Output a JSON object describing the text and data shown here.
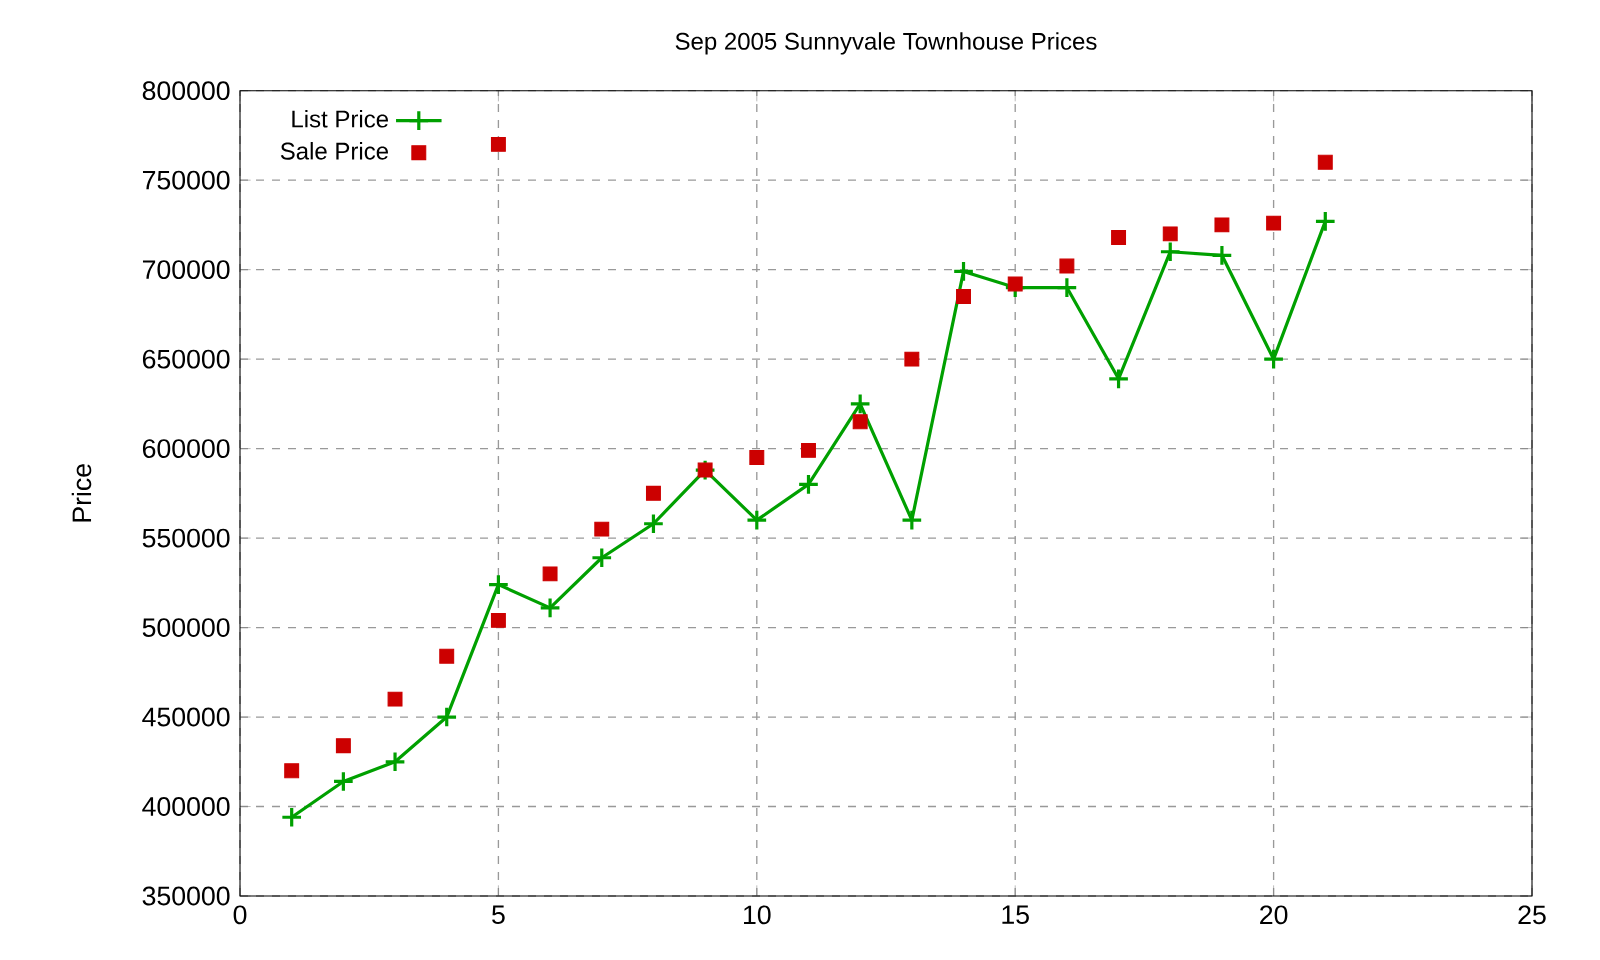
{
  "chart_data": {
    "type": "line",
    "title": "Sep 2005 Sunnyvale Townhouse Prices",
    "ylabel": "Price",
    "xlim": [
      0,
      25
    ],
    "xticks": [
      0,
      5,
      10,
      15,
      20,
      25
    ],
    "ylim": [
      350000,
      800000
    ],
    "yticks": [
      350000,
      400000,
      450000,
      500000,
      550000,
      600000,
      650000,
      700000,
      750000,
      800000
    ],
    "grid": true,
    "legend": "top left",
    "series": [
      {
        "name": "List Price",
        "color": "#00a000",
        "marker": "cross",
        "x": [
          1,
          2,
          3,
          4,
          5,
          6,
          7,
          8,
          9,
          10,
          11,
          12,
          13,
          14,
          15,
          16,
          17,
          18,
          19,
          20,
          21
        ],
        "values": [
          394000,
          414000,
          425000,
          450000,
          524000,
          511000,
          539000,
          558000,
          588000,
          560000,
          580000,
          625000,
          560000,
          699000,
          690000,
          690000,
          639000,
          710000,
          708000,
          650000,
          727000
        ]
      },
      {
        "name": "Sale Price",
        "type": "scatter",
        "color": "#cc0000",
        "marker": "square",
        "x": [
          1,
          2,
          3,
          4,
          5,
          5,
          6,
          7,
          8,
          9,
          10,
          11,
          12,
          13,
          14,
          15,
          16,
          17,
          18,
          19,
          20,
          21
        ],
        "values": [
          420000,
          434000,
          460000,
          484000,
          770000,
          504000,
          530000,
          555000,
          575000,
          588000,
          595000,
          599000,
          615000,
          650000,
          685000,
          692000,
          702000,
          718000,
          720000,
          725000,
          726000,
          760000
        ]
      }
    ]
  }
}
